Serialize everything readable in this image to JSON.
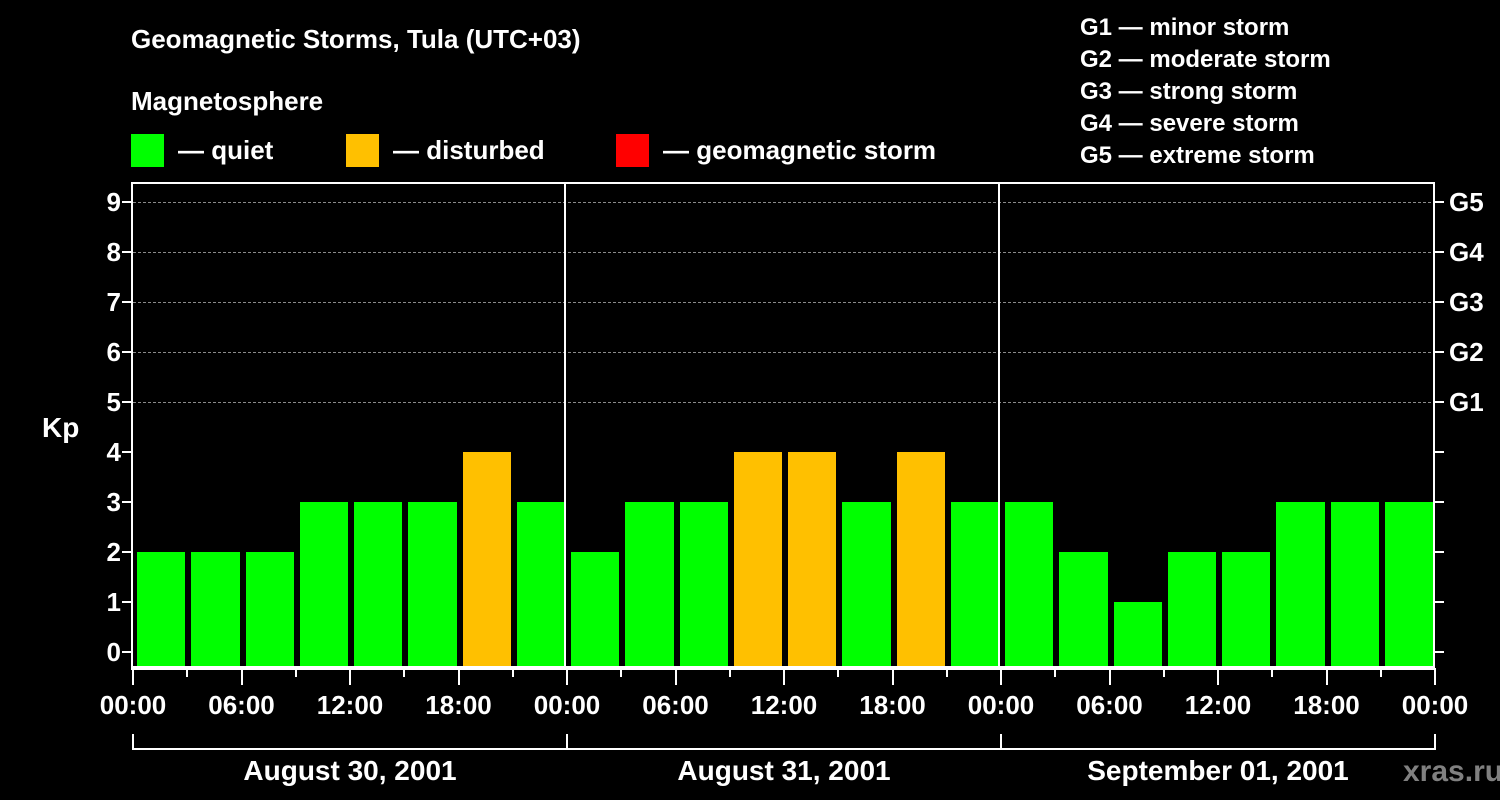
{
  "title": "Geomagnetic Storms, Tula (UTC+03)",
  "subtitle": "Magnetosphere",
  "legend": [
    {
      "label": "— quiet",
      "color": "#00FF00"
    },
    {
      "label": "— disturbed",
      "color": "#FFC000"
    },
    {
      "label": "— geomagnetic storm",
      "color": "#FF0000"
    }
  ],
  "storm_scale": [
    "G1 — minor storm",
    "G2 — moderate storm",
    "G3 — strong storm",
    "G4 — severe storm",
    "G5 — extreme storm"
  ],
  "watermark": "xras.ru",
  "colors": {
    "quiet": "#00FF00",
    "disturbed": "#FFC000",
    "storm": "#FF0000",
    "background": "#000000",
    "grid": "#8A8A8A"
  },
  "chart_data": {
    "type": "bar",
    "title": "Geomagnetic Storms, Tula (UTC+03)",
    "subtitle": "Magnetosphere",
    "ylabel": "Kp",
    "xlabel": "",
    "ylim": [
      0,
      9
    ],
    "yticks": [
      0,
      1,
      2,
      3,
      4,
      5,
      6,
      7,
      8,
      9
    ],
    "right_axis_labels": {
      "5": "G1",
      "6": "G2",
      "7": "G3",
      "8": "G4",
      "9": "G5"
    },
    "grid": "dashed horizontal lines at Kp 5-9",
    "xtick_labels": [
      "00:00",
      "06:00",
      "12:00",
      "18:00",
      "00:00",
      "06:00",
      "12:00",
      "18:00",
      "00:00",
      "06:00",
      "12:00",
      "18:00",
      "00:00"
    ],
    "days": [
      "August 30, 2001",
      "August 31, 2001",
      "September 01, 2001"
    ],
    "interval_hours": 3,
    "categories": [
      "Aug 30 00-03",
      "Aug 30 03-06",
      "Aug 30 06-09",
      "Aug 30 09-12",
      "Aug 30 12-15",
      "Aug 30 15-18",
      "Aug 30 18-21",
      "Aug 30 21-24",
      "Aug 31 00-03",
      "Aug 31 03-06",
      "Aug 31 06-09",
      "Aug 31 09-12",
      "Aug 31 12-15",
      "Aug 31 15-18",
      "Aug 31 18-21",
      "Aug 31 21-24",
      "Sep 01 00-03",
      "Sep 01 03-06",
      "Sep 01 06-09",
      "Sep 01 09-12",
      "Sep 01 12-15",
      "Sep 01 15-18",
      "Sep 01 18-21",
      "Sep 01 21-24"
    ],
    "values": [
      2,
      2,
      2,
      3,
      3,
      3,
      4,
      3,
      2,
      3,
      3,
      4,
      4,
      3,
      4,
      3,
      3,
      2,
      1,
      2,
      2,
      3,
      3,
      3
    ],
    "status": [
      "quiet",
      "quiet",
      "quiet",
      "quiet",
      "quiet",
      "quiet",
      "disturbed",
      "quiet",
      "quiet",
      "quiet",
      "quiet",
      "disturbed",
      "disturbed",
      "quiet",
      "disturbed",
      "quiet",
      "quiet",
      "quiet",
      "quiet",
      "quiet",
      "quiet",
      "quiet",
      "quiet",
      "quiet"
    ],
    "legend": [
      "quiet",
      "disturbed",
      "geomagnetic storm"
    ],
    "legend_position": "top"
  }
}
